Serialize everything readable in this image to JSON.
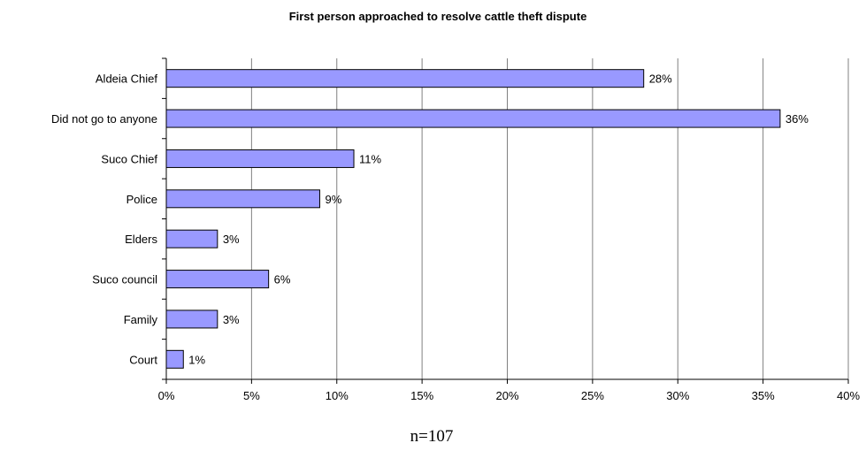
{
  "chart_data": {
    "type": "bar",
    "orientation": "horizontal",
    "title": "First person approached to resolve cattle theft dispute",
    "categories": [
      "Aldeia Chief",
      "Did not go to anyone",
      "Suco Chief",
      "Police",
      "Elders",
      "Suco council",
      "Family",
      "Court"
    ],
    "values": [
      28,
      36,
      11,
      9,
      3,
      6,
      3,
      1
    ],
    "data_labels": [
      "28%",
      "36%",
      "11%",
      "9%",
      "3%",
      "6%",
      "3%",
      "1%"
    ],
    "xlim": [
      0,
      40
    ],
    "x_ticks": [
      "0%",
      "5%",
      "10%",
      "15%",
      "20%",
      "25%",
      "30%",
      "35%",
      "40%"
    ],
    "xlabel": "",
    "ylabel": "",
    "grid": "vertical",
    "legend": "none",
    "note": "n=107",
    "colors": {
      "bar_fill": "#9999FF",
      "bar_stroke": "#000000",
      "grid": "#808080"
    }
  }
}
